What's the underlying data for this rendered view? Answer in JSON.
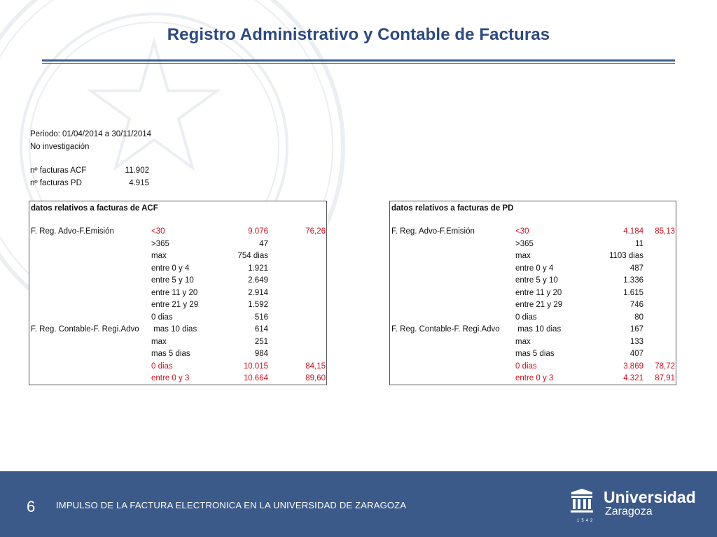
{
  "title": "Registro Administrativo y Contable de Facturas",
  "periodo": "Periodo: 01/04/2014 a 30/11/2014",
  "no_investigacion": "No investigación",
  "acf_label": "nº facturas ACF",
  "acf_value": "11.902",
  "pd_label": "nº facturas PD",
  "pd_value": "4.915",
  "tables": [
    {
      "header": "datos relativos a facturas de ACF",
      "rows": [
        {
          "group": "F. Reg. Advo-F.Emisión",
          "label": "<30",
          "value": "9.076",
          "pct": "76,26",
          "red": true
        },
        {
          "group": "",
          "label": ">365",
          "value": "47",
          "pct": "",
          "red": false
        },
        {
          "group": "",
          "label": "max",
          "value": "754 dias",
          "pct": "",
          "red": false
        },
        {
          "group": "",
          "label": "entre 0 y 4",
          "value": "1.921",
          "pct": "",
          "red": false
        },
        {
          "group": "",
          "label": "entre 5 y 10",
          "value": "2.649",
          "pct": "",
          "red": false
        },
        {
          "group": "",
          "label": "entre 11 y 20",
          "value": "2.914",
          "pct": "",
          "red": false
        },
        {
          "group": "",
          "label": "entre 21 y 29",
          "value": "1.592",
          "pct": "",
          "red": false
        },
        {
          "group": "",
          "label": "0 dias",
          "value": "516",
          "pct": "",
          "red": false
        },
        {
          "group": "F. Reg. Contable-F. Regi.Advo",
          "label": " mas 10 dias",
          "value": "614",
          "pct": "",
          "red": false
        },
        {
          "group": "",
          "label": "max",
          "value": "251",
          "pct": "",
          "red": false
        },
        {
          "group": "",
          "label": "mas 5 dias",
          "value": "984",
          "pct": "",
          "red": false
        },
        {
          "group": "",
          "label": "0 dias",
          "value": "10.015",
          "pct": "84,15",
          "red": true
        },
        {
          "group": "",
          "label": "entre 0 y 3",
          "value": "10.664",
          "pct": "89,60",
          "red": true
        }
      ]
    },
    {
      "header": "datos relativos a facturas de PD",
      "rows": [
        {
          "group": "F. Reg. Advo-F.Emisión",
          "label": "<30",
          "value": "4.184",
          "pct": "85,13",
          "red": true
        },
        {
          "group": "",
          "label": ">365",
          "value": "11",
          "pct": "",
          "red": false
        },
        {
          "group": "",
          "label": "max",
          "value": "1103 dias",
          "pct": "",
          "red": false
        },
        {
          "group": "",
          "label": "entre 0 y 4",
          "value": "487",
          "pct": "",
          "red": false
        },
        {
          "group": "",
          "label": "entre 5 y 10",
          "value": "1.336",
          "pct": "",
          "red": false
        },
        {
          "group": "",
          "label": "entre 11 y 20",
          "value": "1.615",
          "pct": "",
          "red": false
        },
        {
          "group": "",
          "label": "entre 21 y 29",
          "value": "746",
          "pct": "",
          "red": false
        },
        {
          "group": "",
          "label": "0 dias",
          "value": "80",
          "pct": "",
          "red": false
        },
        {
          "group": "F. Reg. Contable-F. Regi.Advo",
          "label": " mas 10 dias",
          "value": "167",
          "pct": "",
          "red": false
        },
        {
          "group": "",
          "label": "max",
          "value": "133",
          "pct": "",
          "red": false
        },
        {
          "group": "",
          "label": "mas 5 dias",
          "value": "407",
          "pct": "",
          "red": false
        },
        {
          "group": "",
          "label": "0 dias",
          "value": "3.869",
          "pct": "78,72",
          "red": true
        },
        {
          "group": "",
          "label": "entre 0 y 3",
          "value": "4.321",
          "pct": "87,91",
          "red": true
        }
      ]
    }
  ],
  "footer": {
    "page_number": "6",
    "text": "IMPULSO DE LA FACTURA ELECTRONICA  EN LA UNIVERSIDAD DE ZARAGOZA",
    "logo_main": "Universidad",
    "logo_sub": "Zaragoza",
    "logo_year": "1542"
  },
  "colors": {
    "title": "#2e4a7f",
    "footer_bg": "#3c5a89",
    "highlight": "#d4101c"
  },
  "icons": {
    "watermark": "university-seal-icon",
    "logo": "university-building-icon"
  }
}
